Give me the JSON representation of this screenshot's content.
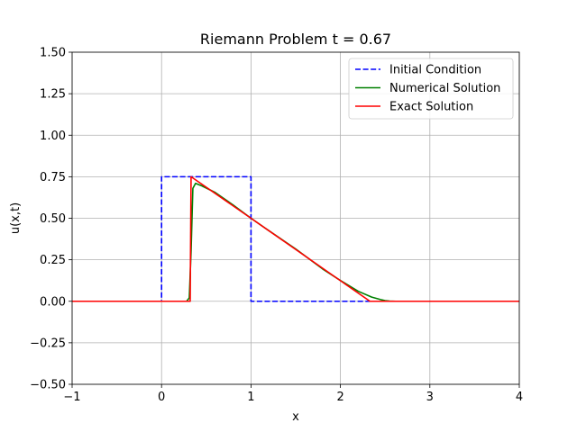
{
  "chart_data": {
    "type": "line",
    "title": "Riemann Problem t = 0.67",
    "xlabel": "x",
    "ylabel": "u(x,t)",
    "xlim": [
      -1,
      4
    ],
    "ylim": [
      -0.5,
      1.5
    ],
    "xticks": [
      -1,
      0,
      1,
      2,
      3,
      4
    ],
    "xtick_labels": [
      "−1",
      "0",
      "1",
      "2",
      "3",
      "4"
    ],
    "yticks": [
      -0.5,
      -0.25,
      0.0,
      0.25,
      0.5,
      0.75,
      1.0,
      1.25,
      1.5
    ],
    "ytick_labels": [
      "−0.50",
      "−0.25",
      "0.00",
      "0.25",
      "0.50",
      "0.75",
      "1.00",
      "1.25",
      "1.50"
    ],
    "grid": true,
    "legend_position": "top-right",
    "series": [
      {
        "name": "Initial Condition",
        "color": "#0000ff",
        "style": "dashed",
        "x": [
          -1,
          0,
          0,
          1,
          1,
          4
        ],
        "y": [
          0,
          0,
          0.75,
          0.75,
          0,
          0
        ]
      },
      {
        "name": "Numerical Solution",
        "color": "#008000",
        "style": "solid",
        "x": [
          -1,
          0.28,
          0.31,
          0.33,
          0.35,
          0.38,
          0.45,
          0.6,
          0.8,
          1.0,
          1.2,
          1.5,
          1.8,
          2.0,
          2.2,
          2.35,
          2.45,
          2.5,
          2.55,
          2.62,
          4
        ],
        "y": [
          0,
          0,
          0.02,
          0.3,
          0.68,
          0.71,
          0.695,
          0.655,
          0.58,
          0.5,
          0.425,
          0.315,
          0.195,
          0.125,
          0.06,
          0.025,
          0.01,
          0.004,
          0.001,
          0,
          0
        ]
      },
      {
        "name": "Exact Solution",
        "color": "#ff0000",
        "style": "solid",
        "x": [
          -1,
          0.32,
          0.33,
          1.0,
          2.33,
          4
        ],
        "y": [
          0,
          0,
          0.75,
          0.5,
          0,
          0
        ]
      }
    ]
  }
}
